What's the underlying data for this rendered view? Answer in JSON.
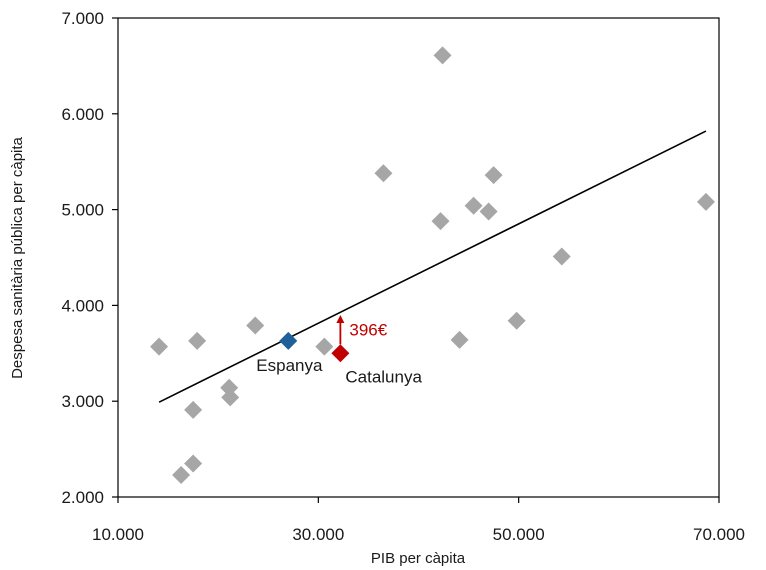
{
  "chart_data": {
    "type": "scatter",
    "xlabel": "PIB per càpita",
    "ylabel": "Despesa sanitària pública per càpita",
    "xlim": [
      10000,
      70000
    ],
    "ylim": [
      2000,
      7000
    ],
    "x_ticks": [
      10000,
      30000,
      50000,
      70000
    ],
    "x_tick_labels": [
      "10.000",
      "30.000",
      "50.000",
      "70.000"
    ],
    "y_ticks": [
      2000,
      3000,
      4000,
      5000,
      6000,
      7000
    ],
    "y_tick_labels": [
      "2.000",
      "3.000",
      "4.000",
      "5.000",
      "6.000",
      "7.000"
    ],
    "grid": false,
    "colors": {
      "points": "#a6a6a6",
      "espanya": "#1f5f9a",
      "catalunya": "#c00000",
      "trend": "#000000",
      "axis": "#000000"
    },
    "points": [
      {
        "x": 14100,
        "y": 3570
      },
      {
        "x": 16300,
        "y": 2230
      },
      {
        "x": 17500,
        "y": 2350
      },
      {
        "x": 17500,
        "y": 2910
      },
      {
        "x": 17900,
        "y": 3630
      },
      {
        "x": 21100,
        "y": 3140
      },
      {
        "x": 21200,
        "y": 3040
      },
      {
        "x": 23700,
        "y": 3790
      },
      {
        "x": 30600,
        "y": 3570
      },
      {
        "x": 36500,
        "y": 5380
      },
      {
        "x": 42400,
        "y": 6610
      },
      {
        "x": 42200,
        "y": 4880
      },
      {
        "x": 44100,
        "y": 3640
      },
      {
        "x": 45500,
        "y": 5040
      },
      {
        "x": 47000,
        "y": 4980
      },
      {
        "x": 47500,
        "y": 5360
      },
      {
        "x": 49800,
        "y": 3840
      },
      {
        "x": 54300,
        "y": 4510
      },
      {
        "x": 68700,
        "y": 5080
      }
    ],
    "highlights": [
      {
        "name": "Espanya",
        "x": 27000,
        "y": 3630,
        "color": "#1f5f9a"
      },
      {
        "name": "Catalunya",
        "x": 32200,
        "y": 3500,
        "color": "#c00000"
      }
    ],
    "trendline": {
      "x1": 14100,
      "y1": 2990,
      "x2": 68700,
      "y2": 5820
    },
    "gap_annotation": {
      "label": "396€",
      "x": 32200,
      "from": 3500,
      "to": 3900
    }
  }
}
